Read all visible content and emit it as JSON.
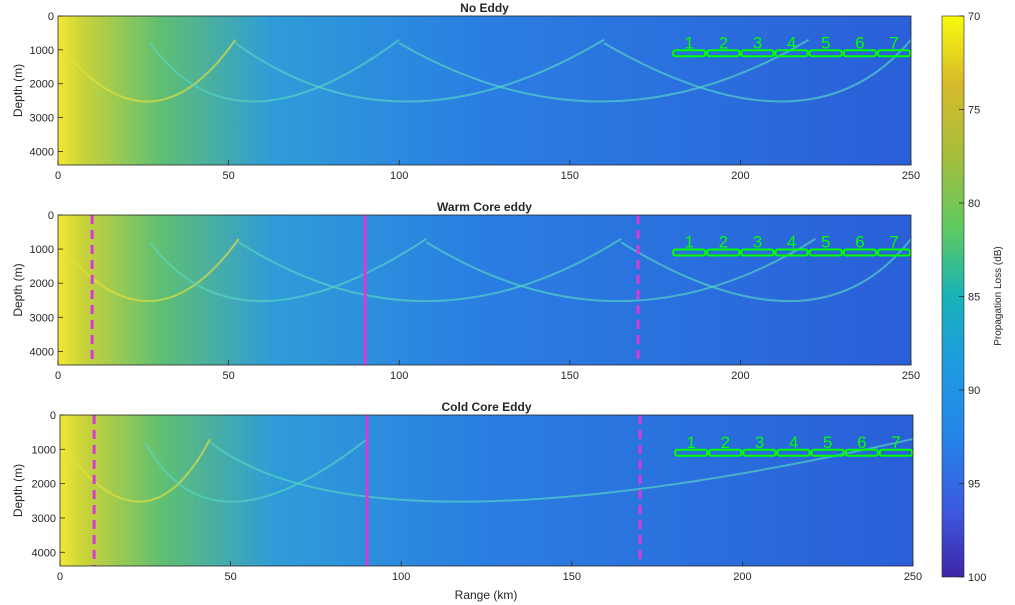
{
  "figure": {
    "colorbar": {
      "label": "Propagation Loss (dB)",
      "min": 70,
      "max": 100,
      "ticks": [
        "70",
        "75",
        "80",
        "85",
        "90",
        "95",
        "100"
      ],
      "colormap": "parula (yellow = low loss, dark blue = high loss)"
    },
    "xlabel": "Range (km)"
  },
  "chart_data": [
    {
      "type": "heatmap",
      "title": "No Eddy",
      "xlabel": "",
      "ylabel": "Depth (m)",
      "xlim": [
        0,
        250
      ],
      "ylim": [
        0,
        4400
      ],
      "y_reversed": true,
      "x_ticks": [
        "0",
        "50",
        "100",
        "150",
        "200",
        "250"
      ],
      "y_ticks": [
        "0",
        "1000",
        "2000",
        "3000",
        "4000"
      ],
      "convergence_zones_km": [
        27,
        52,
        100,
        160,
        220
      ],
      "eddy_boundaries_km": [],
      "receivers": {
        "labels": [
          "1",
          "2",
          "3",
          "4",
          "5",
          "6",
          "7"
        ],
        "x_start_km": 180,
        "x_end_km": 250,
        "depth_m": 1100,
        "color": "#00ff00"
      }
    },
    {
      "type": "heatmap",
      "title": "Warm Core eddy",
      "xlabel": "",
      "ylabel": "Depth (m)",
      "xlim": [
        0,
        250
      ],
      "ylim": [
        0,
        4400
      ],
      "y_reversed": true,
      "x_ticks": [
        "0",
        "50",
        "100",
        "150",
        "200",
        "250"
      ],
      "y_ticks": [
        "0",
        "1000",
        "2000",
        "3000",
        "4000"
      ],
      "convergence_zones_km": [
        27,
        53,
        108,
        165,
        222
      ],
      "eddy_boundaries_km": [
        {
          "x": 10,
          "style": "dashed"
        },
        {
          "x": 90,
          "style": "solid"
        },
        {
          "x": 170,
          "style": "dashed"
        }
      ],
      "receivers": {
        "labels": [
          "1",
          "2",
          "3",
          "4",
          "5",
          "6",
          "7"
        ],
        "x_start_km": 180,
        "x_end_km": 250,
        "depth_m": 1100,
        "color": "#00ff00"
      }
    },
    {
      "type": "heatmap",
      "title": "Cold Core Eddy",
      "xlabel": "Range (km)",
      "ylabel": "Depth (m)",
      "xlim": [
        0,
        250
      ],
      "ylim": [
        0,
        4400
      ],
      "y_reversed": true,
      "x_ticks": [
        "0",
        "50",
        "100",
        "150",
        "200",
        "250"
      ],
      "y_ticks": [
        "0",
        "1000",
        "2000",
        "3000",
        "4000"
      ],
      "convergence_zones_km": [
        25,
        44,
        90
      ],
      "eddy_boundaries_km": [
        {
          "x": 10,
          "style": "dashed"
        },
        {
          "x": 90,
          "style": "solid"
        },
        {
          "x": 170,
          "style": "dashed"
        }
      ],
      "receivers": {
        "labels": [
          "1",
          "2",
          "3",
          "4",
          "5",
          "6",
          "7"
        ],
        "x_start_km": 180,
        "x_end_km": 250,
        "depth_m": 1100,
        "color": "#00ff00"
      }
    }
  ]
}
